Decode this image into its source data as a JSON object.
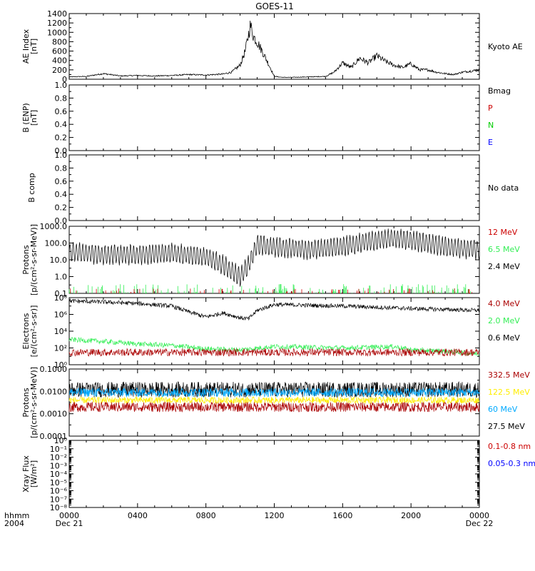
{
  "title": "GOES-11",
  "x_axis": {
    "row1_label": "hhmm",
    "row2_label": "2004",
    "ticks": [
      "0000",
      "0400",
      "0800",
      "1200",
      "1600",
      "2000",
      "0000"
    ],
    "dates": [
      "Dec 21",
      "Dec 22"
    ]
  },
  "panels": [
    {
      "id": "ae",
      "ylabel": [
        "AE Index",
        "[nT]"
      ],
      "yticks": [
        "0",
        "200",
        "400",
        "600",
        "800",
        "1000",
        "1200",
        "1400"
      ],
      "legend": [
        {
          "text": "Kyoto AE",
          "color": "#000000"
        }
      ]
    },
    {
      "id": "bmag",
      "ylabel": [
        "B (ENP)",
        "[nT]"
      ],
      "yticks": [
        "0.0",
        "0.2",
        "0.4",
        "0.6",
        "0.8",
        "1.0"
      ],
      "legend": [
        {
          "text": "Bmag",
          "color": "#000000"
        },
        {
          "text": "P",
          "color": "#cc0000"
        },
        {
          "text": "N",
          "color": "#00cc00"
        },
        {
          "text": "E",
          "color": "#0000ff"
        }
      ]
    },
    {
      "id": "bcomp",
      "ylabel": [
        "B comp"
      ],
      "yticks": [
        "0.0",
        "0.2",
        "0.4",
        "0.6",
        "0.8",
        "1.0"
      ],
      "legend": [
        {
          "text": "No data",
          "color": "#000000"
        }
      ]
    },
    {
      "id": "protons_low",
      "ylabel": [
        "Protons",
        "[p/(cm²-s-sr-MeV)]"
      ],
      "yticks": [
        "0.1",
        "1.0",
        "10.0",
        "100.0",
        "1000.0"
      ],
      "legend": [
        {
          "text": "12 MeV",
          "color": "#cc0000"
        },
        {
          "text": "6.5 MeV",
          "color": "#33ee55"
        },
        {
          "text": "2.4 MeV",
          "color": "#000000"
        }
      ]
    },
    {
      "id": "electrons",
      "ylabel": [
        "Electrons",
        "[e/(cm²-s-sr)]"
      ],
      "yticks": [
        "10⁰",
        "10²",
        "10⁴",
        "10⁶",
        "10⁸"
      ],
      "legend": [
        {
          "text": "4.0 MeV",
          "color": "#aa0000"
        },
        {
          "text": "2.0 MeV",
          "color": "#33ee55"
        },
        {
          "text": "0.6 MeV",
          "color": "#000000"
        }
      ]
    },
    {
      "id": "protons_high",
      "ylabel": [
        "Protons",
        "[p/(cm²-s-sr-MeV)]"
      ],
      "yticks": [
        "0.0001",
        "0.0010",
        "0.0100",
        "0.1000"
      ],
      "legend": [
        {
          "text": "332.5 MeV",
          "color": "#aa0000"
        },
        {
          "text": "122.5 MeV",
          "color": "#ffee00"
        },
        {
          "text": "60 MeV",
          "color": "#00aaff"
        },
        {
          "text": "27.5 MeV",
          "color": "#000000"
        }
      ]
    },
    {
      "id": "xray",
      "ylabel": [
        "Xray Flux",
        "[W/m²]"
      ],
      "yticks": [
        "10⁻⁸",
        "10⁻⁷",
        "10⁻⁶",
        "10⁻⁵",
        "10⁻⁴",
        "10⁻³",
        "10⁻²",
        "10⁻¹",
        "10⁰"
      ],
      "legend": [
        {
          "text": "0.1-0.8 nm",
          "color": "#cc0000"
        },
        {
          "text": "0.05-0.3 nm",
          "color": "#0000ff"
        }
      ]
    }
  ],
  "chart_data": {
    "type": "line",
    "title": "GOES-11",
    "x_unit": "hours",
    "xlim": [
      0,
      24
    ],
    "ae_index": {
      "name": "Kyoto AE",
      "ylim": [
        0,
        1400
      ],
      "x": [
        0,
        1,
        2,
        3,
        4,
        5,
        6,
        7,
        8,
        9,
        9.5,
        10,
        10.3,
        10.6,
        10.8,
        11,
        11.5,
        12,
        12.5,
        13,
        14,
        15,
        15.5,
        16,
        16.5,
        17,
        17.5,
        18,
        18.5,
        19,
        19.5,
        20,
        20.5,
        21,
        21.5,
        22,
        22.5,
        23,
        24
      ],
      "values": [
        50,
        60,
        120,
        70,
        80,
        70,
        80,
        100,
        90,
        110,
        150,
        300,
        600,
        1150,
        900,
        800,
        450,
        60,
        40,
        40,
        50,
        60,
        150,
        350,
        250,
        450,
        350,
        500,
        380,
        300,
        250,
        330,
        200,
        200,
        150,
        120,
        100,
        150,
        200
      ]
    },
    "protons_low": {
      "scale": "log",
      "ylim": [
        0.1,
        1000
      ],
      "series": [
        {
          "name": "2.4 MeV",
          "x": [
            0,
            2,
            4,
            6,
            8,
            9,
            10,
            10.5,
            11,
            12,
            14,
            16,
            18,
            19,
            20,
            22,
            24
          ],
          "values": [
            30,
            20,
            20,
            25,
            15,
            5,
            1,
            5,
            80,
            60,
            40,
            60,
            150,
            200,
            150,
            60,
            40
          ]
        },
        {
          "name": "6.5 MeV",
          "x": [
            0,
            24
          ],
          "values": [
            0.1,
            0.1
          ]
        },
        {
          "name": "12 MeV",
          "x": [
            0,
            24
          ],
          "values": [
            0.1,
            0.1
          ]
        }
      ]
    },
    "electrons": {
      "scale": "log",
      "ylim": [
        1,
        100000000
      ],
      "series": [
        {
          "name": "0.6 MeV",
          "x": [
            0,
            2,
            4,
            6,
            7,
            8,
            9,
            10,
            10.5,
            11,
            12,
            16,
            20,
            24
          ],
          "values": [
            40000000,
            30000000,
            20000000,
            10000000,
            2000000,
            500000,
            1500000,
            400000,
            300000,
            3000000,
            15000000,
            10000000,
            5000000,
            3000000
          ]
        },
        {
          "name": "2.0 MeV",
          "x": [
            0,
            2,
            4,
            6,
            8,
            10,
            12,
            16,
            19,
            20,
            22,
            24
          ],
          "values": [
            1000,
            600,
            300,
            200,
            80,
            60,
            150,
            100,
            150,
            60,
            40,
            20
          ]
        },
        {
          "name": "4.0 MeV",
          "x": [
            0,
            24
          ],
          "values": [
            30,
            30
          ]
        }
      ]
    },
    "protons_high": {
      "scale": "log",
      "ylim": [
        0.0001,
        0.1
      ],
      "series": [
        {
          "name": "27.5 MeV",
          "x": [
            0,
            24
          ],
          "values": [
            0.012,
            0.012
          ]
        },
        {
          "name": "60 MeV",
          "x": [
            0,
            24
          ],
          "values": [
            0.009,
            0.009
          ]
        },
        {
          "name": "122.5 MeV",
          "x": [
            0,
            24
          ],
          "values": [
            0.004,
            0.004
          ]
        },
        {
          "name": "332.5 MeV",
          "x": [
            0,
            24
          ],
          "values": [
            0.002,
            0.002
          ]
        }
      ]
    },
    "bmag": {
      "ylim": [
        0,
        1
      ]
    },
    "bcomp": {
      "ylim": [
        0,
        1
      ]
    },
    "xray": {
      "scale": "log",
      "ylim": [
        1e-08,
        1
      ]
    }
  }
}
